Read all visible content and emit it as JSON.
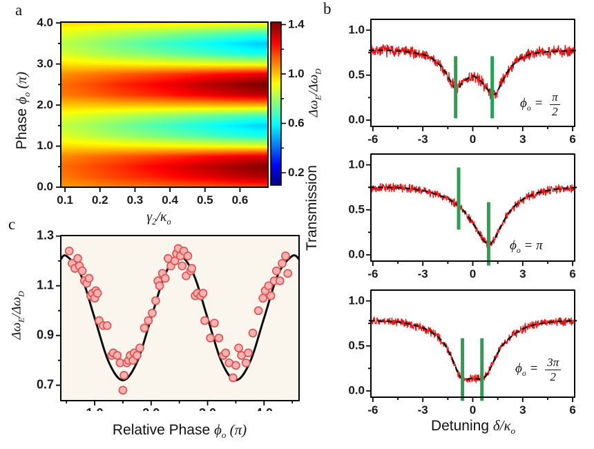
{
  "labels": {
    "panel_a": "a",
    "panel_b": "b",
    "panel_c": "c",
    "a_y_title": {
      "prefix": "Phase ",
      "sym": "ϕ",
      "sub": "o",
      "suffix": " (π)"
    },
    "a_x_title": {
      "p1": "γ",
      "s1": "2",
      "p2": "/κ",
      "s2": "o"
    },
    "colorbar_title": {
      "p1": "Δω",
      "s1": "E",
      "p2": "/Δω",
      "s2": "D"
    },
    "b_y_title": "Transmission",
    "b_x_title": {
      "prefix": "Detuning ",
      "p1": "δ/κ",
      "s1": "o"
    },
    "c_y_title": {
      "p1": "Δω",
      "s1": "E",
      "p2": "/Δω",
      "s2": "D"
    },
    "c_x_title": {
      "prefix": "Relative Phase  ",
      "sym": "ϕ",
      "sub": "o",
      "suffix": " (π)"
    },
    "b1_annotation": {
      "sym": "ϕ",
      "sub": "o",
      "eq": " = ",
      "num": "π",
      "den": "2"
    },
    "b2_annotation": {
      "sym": "ϕ",
      "sub": "o",
      "eq": " = ",
      "val": "π"
    },
    "b3_annotation": {
      "sym": "ϕ",
      "sub": "o",
      "eq": " = ",
      "num": "3π",
      "den": "2"
    }
  },
  "colors": {
    "data_trace": "#ee1111",
    "fit_line": "#0a0a0a",
    "marker_bar": "#2d9e55",
    "scatter_fill": "#f9b2b2",
    "scatter_edge": "#e05353",
    "panel_c_bg": "#faf6ee",
    "axis": "#000000",
    "text": "#1a1a1a"
  },
  "chart_data": [
    {
      "id": "a",
      "type": "heatmap",
      "xlabel": "gamma_2 / kappa_o",
      "ylabel": "Phase phi_o (pi)",
      "colorbar_label": "Delta omega_E / Delta omega_D",
      "colormap": "jet",
      "xlim": [
        0.088,
        0.68
      ],
      "ylim": [
        0,
        4.02
      ],
      "xticks": [
        0.1,
        0.2,
        0.3,
        0.4,
        0.5,
        0.6
      ],
      "xtick_labels": [
        "0.1",
        "0.2",
        "0.3",
        "0.4",
        "0.5",
        "0.6"
      ],
      "yticks": [
        0,
        1,
        2,
        3,
        4
      ],
      "ytick_labels": [
        "0.0",
        "1.0",
        "2.0",
        "3.0",
        "4.0"
      ],
      "yminor": [
        0.5,
        1.5,
        2.5,
        3.5
      ],
      "x": [
        0.1,
        0.18,
        0.26,
        0.34,
        0.42,
        0.49,
        0.57,
        0.65
      ],
      "phi": [
        0,
        0.25,
        0.5,
        0.75,
        1,
        1.25,
        1.5,
        1.75,
        2,
        2.25,
        2.5,
        2.75,
        3,
        3.25,
        3.5,
        3.75,
        4
      ],
      "values": [
        [
          1.05,
          1.07,
          1.09,
          1.1,
          1.12,
          1.13,
          1.15,
          1.16
        ],
        [
          1.1,
          1.14,
          1.18,
          1.21,
          1.25,
          1.28,
          1.32,
          1.35
        ],
        [
          1.12,
          1.16,
          1.2,
          1.25,
          1.29,
          1.33,
          1.37,
          1.41
        ],
        [
          1.08,
          1.11,
          1.14,
          1.17,
          1.2,
          1.23,
          1.26,
          1.29
        ],
        [
          0.97,
          0.96,
          0.95,
          0.94,
          0.93,
          0.92,
          0.91,
          0.9
        ],
        [
          0.88,
          0.84,
          0.8,
          0.77,
          0.73,
          0.7,
          0.66,
          0.63
        ],
        [
          0.84,
          0.8,
          0.75,
          0.7,
          0.66,
          0.62,
          0.58,
          0.54
        ],
        [
          0.9,
          0.87,
          0.84,
          0.81,
          0.78,
          0.75,
          0.72,
          0.69
        ],
        [
          1.0,
          1.0,
          1.01,
          1.01,
          1.02,
          1.02,
          1.03,
          1.03
        ],
        [
          1.1,
          1.13,
          1.17,
          1.2,
          1.24,
          1.27,
          1.31,
          1.34
        ],
        [
          1.12,
          1.16,
          1.21,
          1.25,
          1.29,
          1.34,
          1.38,
          1.42
        ],
        [
          1.07,
          1.1,
          1.13,
          1.16,
          1.19,
          1.22,
          1.25,
          1.28
        ],
        [
          0.96,
          0.95,
          0.94,
          0.93,
          0.92,
          0.91,
          0.9,
          0.89
        ],
        [
          0.87,
          0.83,
          0.79,
          0.76,
          0.72,
          0.69,
          0.65,
          0.62
        ],
        [
          0.83,
          0.79,
          0.74,
          0.69,
          0.65,
          0.61,
          0.57,
          0.53
        ],
        [
          0.89,
          0.86,
          0.83,
          0.8,
          0.77,
          0.74,
          0.71,
          0.68
        ],
        [
          0.97,
          0.97,
          0.96,
          0.96,
          0.95,
          0.95,
          0.94,
          0.94
        ]
      ],
      "colorbar": {
        "lim": [
          0.1,
          1.42
        ],
        "ticks": [
          0.2,
          0.6,
          1.0,
          1.4
        ],
        "tick_labels": [
          "0.2",
          "0.6",
          "1.0",
          "1.4"
        ],
        "minor": [
          0.4,
          0.8,
          1.2
        ]
      }
    },
    {
      "id": "b",
      "type": "line",
      "xlabel": "Detuning delta/kappa_o",
      "ylabel": "Transmission",
      "xlim": [
        -6.12,
        6.12
      ],
      "ylim": [
        -0.07,
        1.12
      ],
      "xticks": [
        -6,
        -3,
        0,
        3,
        6
      ],
      "xtick_labels": [
        "-6",
        "-3",
        "0",
        "3",
        "6"
      ],
      "xminor": [
        -4.5,
        -1.5,
        1.5,
        4.5
      ],
      "yticks": [
        0,
        0.5,
        1
      ],
      "ytick_labels": [
        "0.0",
        "0.5",
        "1.0"
      ],
      "yminor": [
        0.25,
        0.75
      ],
      "subplots": [
        {
          "annotation": "phi_o = pi/2",
          "noise": 0.05,
          "fit": [
            [
              -6.25,
              0.775
            ],
            [
              -5,
              0.775
            ],
            [
              -4,
              0.76
            ],
            [
              -3,
              0.73
            ],
            [
              -2.5,
              0.69
            ],
            [
              -2,
              0.615
            ],
            [
              -1.6,
              0.52
            ],
            [
              -1.3,
              0.42
            ],
            [
              -1.05,
              0.345
            ],
            [
              -0.85,
              0.36
            ],
            [
              -0.6,
              0.42
            ],
            [
              -0.3,
              0.465
            ],
            [
              0,
              0.49
            ],
            [
              0.3,
              0.46
            ],
            [
              0.6,
              0.41
            ],
            [
              0.9,
              0.34
            ],
            [
              1.15,
              0.29
            ],
            [
              1.4,
              0.3
            ],
            [
              1.7,
              0.4
            ],
            [
              2,
              0.51
            ],
            [
              2.3,
              0.59
            ],
            [
              2.6,
              0.645
            ],
            [
              3,
              0.7
            ],
            [
              3.5,
              0.735
            ],
            [
              4,
              0.75
            ],
            [
              5,
              0.765
            ],
            [
              6.25,
              0.775
            ]
          ],
          "bars": [
            {
              "x": -1.03,
              "y0": 0.02,
              "y1": 0.71
            },
            {
              "x": 1.17,
              "y0": 0.02,
              "y1": 0.71
            }
          ]
        },
        {
          "annotation": "phi_o = pi",
          "noise": 0.035,
          "fit": [
            [
              -6.25,
              0.75
            ],
            [
              -5,
              0.748
            ],
            [
              -4,
              0.74
            ],
            [
              -3,
              0.715
            ],
            [
              -2.5,
              0.69
            ],
            [
              -2,
              0.66
            ],
            [
              -1.5,
              0.625
            ],
            [
              -1,
              0.565
            ],
            [
              -0.6,
              0.5
            ],
            [
              -0.3,
              0.43
            ],
            [
              0,
              0.35
            ],
            [
              0.3,
              0.26
            ],
            [
              0.6,
              0.17
            ],
            [
              0.85,
              0.125
            ],
            [
              1.05,
              0.12
            ],
            [
              1.3,
              0.175
            ],
            [
              1.6,
              0.28
            ],
            [
              2,
              0.42
            ],
            [
              2.5,
              0.54
            ],
            [
              3,
              0.615
            ],
            [
              3.5,
              0.66
            ],
            [
              4,
              0.695
            ],
            [
              5,
              0.73
            ],
            [
              6.25,
              0.75
            ]
          ],
          "bars": [
            {
              "x": -0.85,
              "y0": 0.28,
              "y1": 0.97
            },
            {
              "x": 0.95,
              "y0": -0.12,
              "y1": 0.585
            }
          ]
        },
        {
          "annotation": "phi_o = 3pi/2",
          "noise": 0.035,
          "fit": [
            [
              -6.25,
              0.78
            ],
            [
              -5,
              0.772
            ],
            [
              -4,
              0.752
            ],
            [
              -3,
              0.7
            ],
            [
              -2.5,
              0.655
            ],
            [
              -2,
              0.585
            ],
            [
              -1.7,
              0.52
            ],
            [
              -1.4,
              0.42
            ],
            [
              -1.1,
              0.3
            ],
            [
              -0.9,
              0.2
            ],
            [
              -0.7,
              0.15
            ],
            [
              -0.45,
              0.132
            ],
            [
              0,
              0.138
            ],
            [
              0.45,
              0.132
            ],
            [
              0.7,
              0.148
            ],
            [
              0.95,
              0.21
            ],
            [
              1.2,
              0.31
            ],
            [
              1.5,
              0.42
            ],
            [
              1.8,
              0.51
            ],
            [
              2.2,
              0.585
            ],
            [
              2.6,
              0.645
            ],
            [
              3,
              0.69
            ],
            [
              3.5,
              0.725
            ],
            [
              4,
              0.745
            ],
            [
              5,
              0.77
            ],
            [
              6.25,
              0.78
            ]
          ],
          "bars": [
            {
              "x": -0.62,
              "y0": -0.11,
              "y1": 0.585
            },
            {
              "x": 0.55,
              "y0": -0.11,
              "y1": 0.585
            }
          ]
        }
      ]
    },
    {
      "id": "c",
      "type": "scatter",
      "xlabel": "Relative Phase phi_o (pi)",
      "ylabel": "Delta omega_E / Delta omega_D",
      "xlim": [
        0.4,
        4.62
      ],
      "ylim": [
        0.638,
        1.302
      ],
      "xticks": [
        1,
        2,
        3,
        4
      ],
      "xtick_labels": [
        "1.0",
        "2.0",
        "3.0",
        "4.0"
      ],
      "xminor": [
        0.5,
        1.5,
        2.5,
        3.5,
        4.5
      ],
      "yticks": [
        0.7,
        0.9,
        1.1,
        1.3
      ],
      "ytick_labels": [
        "0.7",
        "0.9",
        "1.1",
        "1.3"
      ],
      "yminor": [
        0.8,
        1.0,
        1.2
      ],
      "fit": [
        [
          0.4,
          1.207
        ],
        [
          0.5,
          1.22
        ],
        [
          0.75,
          1.147
        ],
        [
          1.0,
          0.97
        ],
        [
          1.25,
          0.793
        ],
        [
          1.5,
          0.72
        ],
        [
          1.75,
          0.793
        ],
        [
          2.0,
          0.97
        ],
        [
          2.25,
          1.147
        ],
        [
          2.5,
          1.22
        ],
        [
          2.75,
          1.147
        ],
        [
          3.0,
          0.97
        ],
        [
          3.25,
          0.793
        ],
        [
          3.5,
          0.72
        ],
        [
          3.75,
          0.793
        ],
        [
          4.0,
          0.97
        ],
        [
          4.25,
          1.147
        ],
        [
          4.5,
          1.22
        ],
        [
          4.62,
          1.207
        ]
      ],
      "points": [
        [
          0.55,
          1.24
        ],
        [
          0.6,
          1.19
        ],
        [
          0.65,
          1.17
        ],
        [
          0.7,
          1.21
        ],
        [
          0.73,
          1.18
        ],
        [
          0.78,
          1.16
        ],
        [
          0.82,
          1.12
        ],
        [
          0.86,
          1.11
        ],
        [
          0.9,
          1.13
        ],
        [
          0.93,
          1.06
        ],
        [
          0.96,
          1.07
        ],
        [
          1.0,
          1.05
        ],
        [
          1.02,
          1.08
        ],
        [
          1.05,
          1.07
        ],
        [
          1.08,
          0.96
        ],
        [
          1.15,
          0.94
        ],
        [
          1.22,
          0.94
        ],
        [
          1.3,
          0.82
        ],
        [
          1.33,
          0.83
        ],
        [
          1.4,
          0.82
        ],
        [
          1.45,
          0.79
        ],
        [
          1.5,
          0.68
        ],
        [
          1.52,
          0.74
        ],
        [
          1.57,
          0.79
        ],
        [
          1.6,
          0.8
        ],
        [
          1.63,
          0.82
        ],
        [
          1.68,
          0.8
        ],
        [
          1.7,
          0.83
        ],
        [
          1.75,
          0.82
        ],
        [
          1.8,
          0.85
        ],
        [
          1.88,
          0.93
        ],
        [
          1.95,
          0.96
        ],
        [
          2.02,
          0.99
        ],
        [
          2.08,
          1.04
        ],
        [
          2.12,
          1.12
        ],
        [
          2.15,
          1.1
        ],
        [
          2.2,
          1.15
        ],
        [
          2.25,
          1.13
        ],
        [
          2.3,
          1.21
        ],
        [
          2.35,
          1.18
        ],
        [
          2.42,
          1.2
        ],
        [
          2.45,
          1.23
        ],
        [
          2.48,
          1.25
        ],
        [
          2.52,
          1.22
        ],
        [
          2.55,
          1.18
        ],
        [
          2.58,
          1.24
        ],
        [
          2.62,
          1.14
        ],
        [
          2.65,
          1.22
        ],
        [
          2.7,
          1.16
        ],
        [
          2.72,
          1.17
        ],
        [
          2.78,
          1.06
        ],
        [
          2.82,
          1.07
        ],
        [
          2.88,
          1.06
        ],
        [
          2.92,
          1.07
        ],
        [
          2.95,
          0.96
        ],
        [
          3.05,
          0.89
        ],
        [
          3.12,
          0.95
        ],
        [
          3.2,
          0.89
        ],
        [
          3.28,
          0.82
        ],
        [
          3.32,
          0.83
        ],
        [
          3.38,
          0.79
        ],
        [
          3.45,
          0.73
        ],
        [
          3.5,
          0.78
        ],
        [
          3.55,
          0.85
        ],
        [
          3.6,
          0.82
        ],
        [
          3.68,
          0.79
        ],
        [
          3.72,
          0.83
        ],
        [
          3.8,
          0.91
        ],
        [
          3.9,
          1.0
        ],
        [
          3.98,
          1.05
        ],
        [
          4.02,
          1.08
        ],
        [
          4.08,
          1.1
        ],
        [
          4.12,
          1.06
        ],
        [
          4.18,
          1.12
        ],
        [
          4.22,
          1.16
        ],
        [
          4.28,
          1.12
        ],
        [
          4.32,
          1.19
        ],
        [
          4.38,
          1.22
        ],
        [
          4.42,
          1.15
        ]
      ]
    }
  ]
}
